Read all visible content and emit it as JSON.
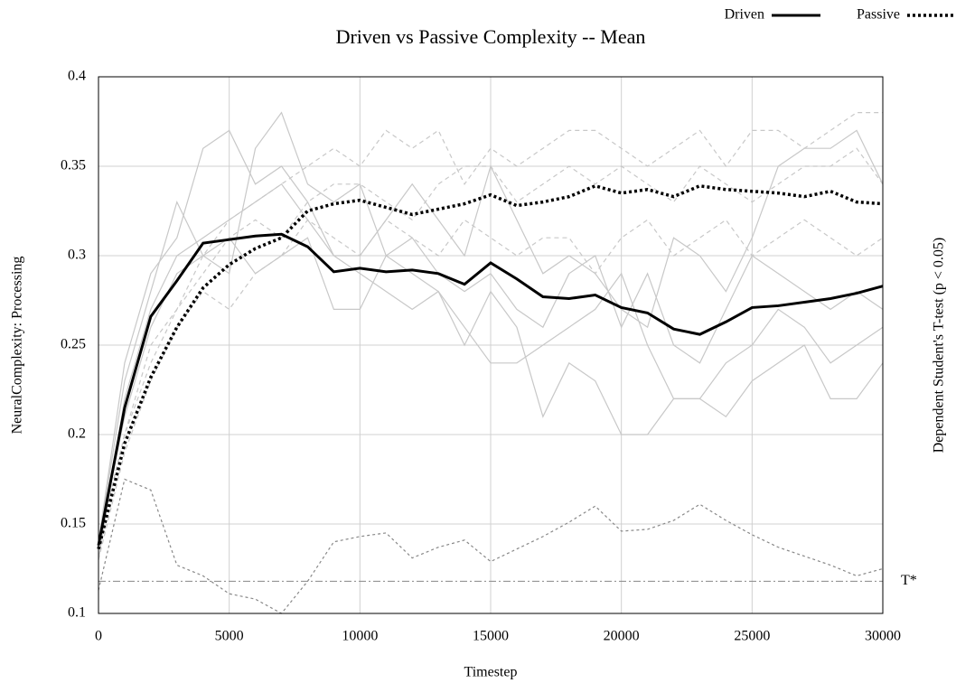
{
  "chart_data": {
    "type": "line",
    "title": "Driven vs Passive Complexity -- Mean",
    "xlabel": "Timestep",
    "ylabel": "NeuralComplexity: Processing",
    "y2label": "Dependent Student's T-test (p < 0.05)",
    "x": [
      0,
      1000,
      2000,
      3000,
      4000,
      5000,
      6000,
      7000,
      8000,
      9000,
      10000,
      11000,
      12000,
      13000,
      14000,
      15000,
      16000,
      17000,
      18000,
      19000,
      20000,
      21000,
      22000,
      23000,
      24000,
      25000,
      26000,
      27000,
      28000,
      29000,
      30000
    ],
    "xlim": [
      0,
      30000
    ],
    "xticks": [
      0,
      5000,
      10000,
      15000,
      20000,
      25000,
      30000
    ],
    "ylim": [
      0.1,
      0.4
    ],
    "yticks": [
      0.1,
      0.15,
      0.2,
      0.25,
      0.3,
      0.35,
      0.4
    ],
    "y2lim": [
      0.1,
      0.4
    ],
    "y2ticks": [
      {
        "value": 0.118,
        "label": "T*"
      }
    ],
    "grid": true,
    "legend": "top-right",
    "series": [
      {
        "color": "#c8c8c8",
        "style": "solid",
        "width": 1.2,
        "values": [
          0.14,
          0.24,
          0.29,
          0.31,
          0.36,
          0.37,
          0.34,
          0.35,
          0.33,
          0.3,
          0.29,
          0.28,
          0.27,
          0.28,
          0.26,
          0.24,
          0.24,
          0.25,
          0.26,
          0.27,
          0.29,
          0.25,
          0.22,
          0.22,
          0.24,
          0.25,
          0.27,
          0.26,
          0.24,
          0.25,
          0.26
        ]
      },
      {
        "color": "#c8c8c8",
        "style": "solid",
        "width": 1.2,
        "values": [
          0.13,
          0.22,
          0.27,
          0.3,
          0.31,
          0.32,
          0.33,
          0.34,
          0.32,
          0.3,
          0.3,
          0.32,
          0.34,
          0.32,
          0.3,
          0.35,
          0.32,
          0.29,
          0.3,
          0.29,
          0.27,
          0.26,
          0.31,
          0.3,
          0.28,
          0.31,
          0.35,
          0.36,
          0.36,
          0.37,
          0.34
        ]
      },
      {
        "color": "#c8c8c8",
        "style": "solid",
        "width": 1.2,
        "values": [
          0.14,
          0.21,
          0.26,
          0.29,
          0.3,
          0.31,
          0.29,
          0.3,
          0.31,
          0.27,
          0.27,
          0.3,
          0.29,
          0.28,
          0.25,
          0.28,
          0.26,
          0.21,
          0.24,
          0.23,
          0.2,
          0.2,
          0.22,
          0.22,
          0.21,
          0.23,
          0.24,
          0.25,
          0.22,
          0.22,
          0.24
        ]
      },
      {
        "color": "#c8c8c8",
        "style": "solid",
        "width": 1.2,
        "values": [
          0.14,
          0.23,
          0.28,
          0.33,
          0.3,
          0.29,
          0.36,
          0.38,
          0.34,
          0.33,
          0.34,
          0.3,
          0.31,
          0.29,
          0.28,
          0.29,
          0.27,
          0.26,
          0.29,
          0.3,
          0.26,
          0.29,
          0.25,
          0.24,
          0.27,
          0.3,
          0.29,
          0.28,
          0.27,
          0.28,
          0.27
        ]
      },
      {
        "color": "#c8c8c8",
        "style": "dashed",
        "width": 1.2,
        "values": [
          0.14,
          0.2,
          0.24,
          0.27,
          0.3,
          0.32,
          0.33,
          0.34,
          0.35,
          0.36,
          0.35,
          0.37,
          0.36,
          0.37,
          0.34,
          0.36,
          0.35,
          0.36,
          0.37,
          0.37,
          0.36,
          0.35,
          0.36,
          0.37,
          0.35,
          0.37,
          0.37,
          0.36,
          0.37,
          0.38,
          0.38
        ]
      },
      {
        "color": "#c8c8c8",
        "style": "dashed",
        "width": 1.2,
        "values": [
          0.13,
          0.19,
          0.23,
          0.26,
          0.28,
          0.27,
          0.29,
          0.3,
          0.32,
          0.31,
          0.3,
          0.32,
          0.31,
          0.3,
          0.32,
          0.31,
          0.3,
          0.31,
          0.31,
          0.29,
          0.31,
          0.32,
          0.3,
          0.31,
          0.32,
          0.3,
          0.31,
          0.32,
          0.31,
          0.3,
          0.31
        ]
      },
      {
        "color": "#c8c8c8",
        "style": "dashed",
        "width": 1.2,
        "values": [
          0.14,
          0.2,
          0.25,
          0.27,
          0.29,
          0.31,
          0.32,
          0.31,
          0.33,
          0.34,
          0.34,
          0.33,
          0.32,
          0.34,
          0.35,
          0.35,
          0.33,
          0.34,
          0.35,
          0.34,
          0.35,
          0.34,
          0.33,
          0.35,
          0.34,
          0.33,
          0.34,
          0.35,
          0.35,
          0.36,
          0.34
        ]
      },
      {
        "color": "#888888",
        "style": "dotted",
        "width": 1.2,
        "axis": "y2",
        "values": [
          0.113,
          0.175,
          0.169,
          0.127,
          0.121,
          0.111,
          0.108,
          0.1,
          0.118,
          0.14,
          0.143,
          0.145,
          0.131,
          0.137,
          0.141,
          0.129,
          0.136,
          0.143,
          0.151,
          0.16,
          0.146,
          0.147,
          0.152,
          0.161,
          0.152,
          0.144,
          0.137,
          0.132,
          0.127,
          0.121,
          0.125
        ]
      },
      {
        "name": "Driven",
        "color": "#000000",
        "style": "solid",
        "width": 3,
        "values": [
          0.138,
          0.215,
          0.266,
          0.286,
          0.307,
          0.309,
          0.311,
          0.312,
          0.305,
          0.291,
          0.293,
          0.291,
          0.292,
          0.29,
          0.284,
          0.296,
          0.287,
          0.277,
          0.276,
          0.278,
          0.271,
          0.268,
          0.259,
          0.256,
          0.263,
          0.271,
          0.272,
          0.274,
          0.276,
          0.279,
          0.283
        ]
      },
      {
        "name": "Passive",
        "color": "#000000",
        "style": "dotted",
        "width": 3.5,
        "values": [
          0.136,
          0.195,
          0.232,
          0.26,
          0.282,
          0.295,
          0.304,
          0.31,
          0.325,
          0.329,
          0.331,
          0.327,
          0.323,
          0.326,
          0.329,
          0.334,
          0.328,
          0.33,
          0.333,
          0.339,
          0.335,
          0.337,
          0.333,
          0.339,
          0.337,
          0.336,
          0.335,
          0.333,
          0.336,
          0.33,
          0.329
        ]
      }
    ]
  }
}
